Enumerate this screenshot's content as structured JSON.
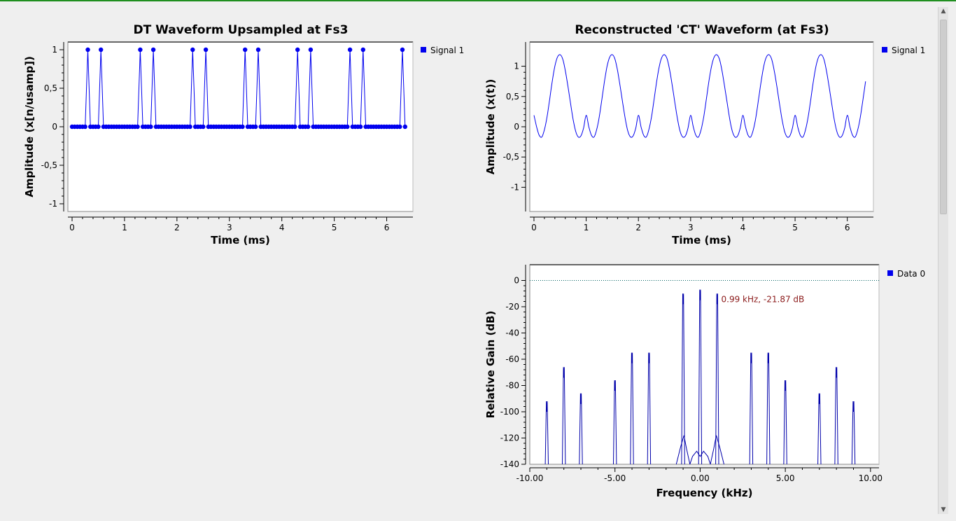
{
  "colors": {
    "signal": "#0000ee",
    "spectrum": "#0000aa",
    "reference_line": "#006060",
    "marker_text": "#8b1a1a",
    "plot_background": "#ffffff",
    "window_background": "#efefef",
    "top_border": "#1f8f1f"
  },
  "icons": {
    "legend_marker": "square-icon",
    "scroll_up": "arrow-up-icon",
    "scroll_down": "arrow-down-icon"
  },
  "chart_data": [
    {
      "id": "dt",
      "type": "scatter",
      "style": "stem",
      "title": "DT Waveform Upsampled at Fs3",
      "xlabel": "Time (ms)",
      "ylabel": "Amplitude (x[n/usamp])",
      "xlim": [
        -0.08,
        6.5
      ],
      "ylim": [
        -1.1,
        1.1
      ],
      "xticks": [
        0,
        1,
        2,
        3,
        4,
        5,
        6
      ],
      "xtick_labels": [
        "0",
        "1",
        "2",
        "3",
        "4",
        "5",
        "6"
      ],
      "yticks": [
        1,
        0.5,
        0,
        -0.5,
        -1
      ],
      "ytick_labels": [
        "1",
        "0,5",
        "0",
        "-0,5",
        "-1"
      ],
      "grid": false,
      "legend": "top-right",
      "series": [
        {
          "name": "Signal 1",
          "x_start": 0,
          "x_step": 0.05,
          "count": 128,
          "pulses": [
            {
              "x": 0.3,
              "y": 1
            },
            {
              "x": 0.55,
              "y": 1
            },
            {
              "x": 1.3,
              "y": 1
            },
            {
              "x": 1.55,
              "y": 1
            },
            {
              "x": 2.3,
              "y": 1
            },
            {
              "x": 2.55,
              "y": 1
            },
            {
              "x": 3.3,
              "y": 1
            },
            {
              "x": 3.55,
              "y": 1
            },
            {
              "x": 4.3,
              "y": 1
            },
            {
              "x": 4.55,
              "y": 1
            },
            {
              "x": 5.3,
              "y": 1
            },
            {
              "x": 5.55,
              "y": 1
            },
            {
              "x": 6.3,
              "y": 1
            }
          ],
          "baseline_y": 0
        }
      ]
    },
    {
      "id": "ct",
      "type": "line",
      "title": "Reconstructed 'CT' Waveform (at Fs3)",
      "xlabel": "Time (ms)",
      "ylabel": "Amplitude (x(t))",
      "xlim": [
        -0.08,
        6.5
      ],
      "ylim": [
        -1.4,
        1.4
      ],
      "xticks": [
        0,
        1,
        2,
        3,
        4,
        5,
        6
      ],
      "xtick_labels": [
        "0",
        "1",
        "2",
        "3",
        "4",
        "5",
        "6"
      ],
      "yticks": [
        1,
        0.5,
        0,
        -0.5,
        -1
      ],
      "ytick_labels": [
        "1",
        "0,5",
        "0",
        "-0,5",
        "-1"
      ],
      "grid": false,
      "legend": "top-right",
      "series": [
        {
          "name": "Signal 1",
          "x": [
            0,
            0.05,
            0.1,
            0.15,
            0.2,
            0.25,
            0.3,
            0.35,
            0.4,
            0.45,
            0.5,
            0.55,
            0.6,
            0.65,
            0.7,
            0.75,
            0.8,
            0.85,
            0.9,
            0.95,
            1.0,
            1.05,
            1.1,
            1.15,
            1.2,
            1.25,
            1.3,
            1.35,
            1.4,
            1.45,
            1.5,
            1.55,
            1.6,
            1.65,
            1.7,
            1.75,
            1.8,
            1.85,
            1.9,
            1.95,
            2.0,
            2.05,
            2.1,
            2.15,
            2.2,
            2.25,
            2.3,
            2.35,
            2.4,
            2.45,
            2.5,
            2.55,
            2.6,
            2.65,
            2.7,
            2.75,
            2.8,
            2.85,
            2.9,
            2.95,
            3.0,
            3.05,
            3.1,
            3.15,
            3.2,
            3.25,
            3.3,
            3.35,
            3.4,
            3.45,
            3.5,
            3.55,
            3.6,
            3.65,
            3.7,
            3.75,
            3.8,
            3.85,
            3.9,
            3.95,
            4.0,
            4.05,
            4.1,
            4.15,
            4.2,
            4.25,
            4.3,
            4.35,
            4.4,
            4.45,
            4.5,
            4.55,
            4.6,
            4.65,
            4.7,
            4.75,
            4.8,
            4.85,
            4.9,
            4.95,
            5.0,
            5.05,
            5.1,
            5.15,
            5.2,
            5.25,
            5.3,
            5.35,
            5.4,
            5.45,
            5.5,
            5.55,
            5.6,
            5.65,
            5.7,
            5.75,
            5.8,
            5.85,
            5.9,
            5.95,
            6.0,
            6.05,
            6.1,
            6.15,
            6.2,
            6.25,
            6.3,
            6.35
          ],
          "y": [
            0.19,
            0.0,
            -0.14,
            -0.17,
            -0.05,
            0.16,
            0.45,
            0.75,
            1.0,
            1.15,
            1.19,
            1.12,
            0.93,
            0.67,
            0.39,
            0.12,
            -0.08,
            -0.17,
            -0.15,
            -0.02,
            0.19,
            0.0,
            -0.14,
            -0.17,
            -0.05,
            0.16,
            0.45,
            0.75,
            1.0,
            1.15,
            1.19,
            1.12,
            0.93,
            0.67,
            0.39,
            0.12,
            -0.08,
            -0.17,
            -0.15,
            -0.02,
            0.19,
            0.0,
            -0.14,
            -0.17,
            -0.05,
            0.16,
            0.45,
            0.75,
            1.0,
            1.15,
            1.19,
            1.12,
            0.93,
            0.67,
            0.39,
            0.12,
            -0.08,
            -0.17,
            -0.15,
            -0.02,
            0.19,
            0.0,
            -0.14,
            -0.17,
            -0.05,
            0.16,
            0.45,
            0.75,
            1.0,
            1.15,
            1.19,
            1.12,
            0.93,
            0.67,
            0.39,
            0.12,
            -0.08,
            -0.17,
            -0.15,
            -0.02,
            0.19,
            0.0,
            -0.14,
            -0.17,
            -0.05,
            0.16,
            0.45,
            0.75,
            1.0,
            1.15,
            1.19,
            1.12,
            0.93,
            0.67,
            0.39,
            0.12,
            -0.08,
            -0.17,
            -0.15,
            -0.02,
            0.19,
            0.0,
            -0.14,
            -0.17,
            -0.05,
            0.16,
            0.45,
            0.75,
            1.0,
            1.15,
            1.19,
            1.12,
            0.93,
            0.67,
            0.39,
            0.12,
            -0.08,
            -0.17,
            -0.15,
            -0.02,
            0.19,
            0.0,
            -0.14,
            -0.17,
            -0.05,
            0.16,
            0.45,
            0.75
          ]
        }
      ]
    },
    {
      "id": "freq",
      "type": "line",
      "title": "",
      "xlabel": "Frequency (kHz)",
      "ylabel": "Relative Gain (dB)",
      "xlim": [
        -10.0,
        10.5
      ],
      "ylim": [
        -140,
        12
      ],
      "xticks": [
        -10,
        -5,
        0,
        5,
        10
      ],
      "xtick_labels": [
        "-10.00",
        "-5.00",
        "0.00",
        "5.00",
        "10.00"
      ],
      "yticks": [
        0,
        -20,
        -40,
        -60,
        -80,
        -100,
        -120,
        -140
      ],
      "ytick_labels": [
        "0",
        "-20",
        "-40",
        "-60",
        "-80",
        "-100",
        "-120",
        "-140"
      ],
      "grid": false,
      "legend": "top-right",
      "reference_line_y": 0,
      "marker": {
        "x": 0.99,
        "y": -21.87,
        "label": "0.99 kHz, -21.87 dB"
      },
      "series": [
        {
          "name": "Data 0",
          "peaks": [
            {
              "x": -9.0,
              "y": -100
            },
            {
              "x": -8.0,
              "y": -74
            },
            {
              "x": -7.0,
              "y": -94
            },
            {
              "x": -5.0,
              "y": -84
            },
            {
              "x": -4.0,
              "y": -63
            },
            {
              "x": -3.0,
              "y": -63
            },
            {
              "x": -1.0,
              "y": -18
            },
            {
              "x": 0.0,
              "y": -15
            },
            {
              "x": 1.0,
              "y": -18
            },
            {
              "x": 3.0,
              "y": -63
            },
            {
              "x": 4.0,
              "y": -63
            },
            {
              "x": 5.0,
              "y": -84
            },
            {
              "x": 7.0,
              "y": -94
            },
            {
              "x": 8.0,
              "y": -74
            },
            {
              "x": 9.0,
              "y": -100
            }
          ],
          "floor_y": -140
        }
      ]
    }
  ]
}
